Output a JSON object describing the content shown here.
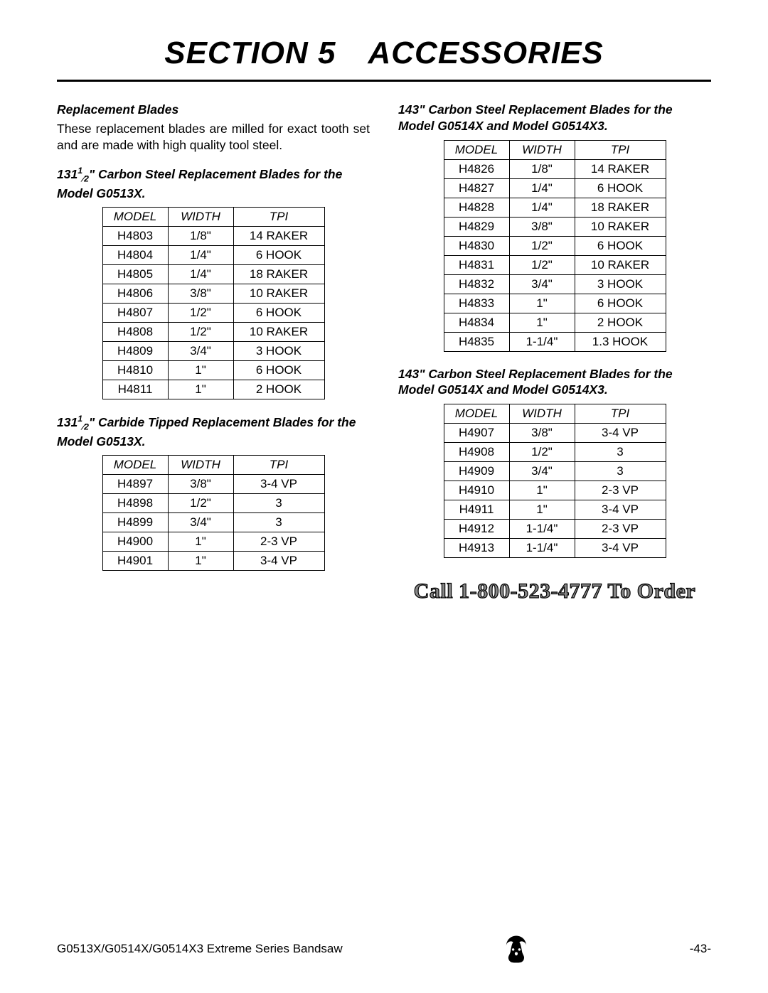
{
  "page": {
    "section_title": "SECTION 5 ACCESSORIES",
    "footer_left": "G0513X/G0514X/G0514X3 Extreme Series Bandsaw",
    "footer_right": "-43-"
  },
  "left": {
    "subhead": "Replacement Blades",
    "body": "These replacement blades are milled for exact tooth set and are made with high quality tool steel.",
    "caption1_prefix": "131",
    "caption1_sup": "1",
    "caption1_frac": "⁄2",
    "caption1_rest": "\" Carbon Steel Replacement Blades for the Model G0513X.",
    "caption2_prefix": "131",
    "caption2_sup": "1",
    "caption2_frac": "⁄2",
    "caption2_rest": "\" Carbide Tipped Replacement Blades for the Model G0513X."
  },
  "right": {
    "caption1": "143\" Carbon Steel Replacement Blades for the Model G0514X and Model G0514X3.",
    "caption2": "143\" Carbon Steel Replacement Blades for the Model G0514X and Model G0514X3.",
    "cta": "Call 1-800-523-4777 To Order"
  },
  "headers": {
    "h1": "MODEL",
    "h2": "WIDTH",
    "h3": "TPI"
  },
  "tables": {
    "t1": {
      "rows": [
        [
          "H4803",
          "1/8\"",
          "14 RAKER"
        ],
        [
          "H4804",
          "1/4\"",
          "6 HOOK"
        ],
        [
          "H4805",
          "1/4\"",
          "18 RAKER"
        ],
        [
          "H4806",
          "3/8\"",
          "10 RAKER"
        ],
        [
          "H4807",
          "1/2\"",
          "6 HOOK"
        ],
        [
          "H4808",
          "1/2\"",
          "10 RAKER"
        ],
        [
          "H4809",
          "3/4\"",
          "3 HOOK"
        ],
        [
          "H4810",
          "1\"",
          "6 HOOK"
        ],
        [
          "H4811",
          "1\"",
          "2 HOOK"
        ]
      ]
    },
    "t2": {
      "rows": [
        [
          "H4897",
          "3/8\"",
          "3-4 VP"
        ],
        [
          "H4898",
          "1/2\"",
          "3"
        ],
        [
          "H4899",
          "3/4\"",
          "3"
        ],
        [
          "H4900",
          "1\"",
          "2-3 VP"
        ],
        [
          "H4901",
          "1\"",
          "3-4 VP"
        ]
      ]
    },
    "t3": {
      "rows": [
        [
          "H4826",
          "1/8\"",
          "14 RAKER"
        ],
        [
          "H4827",
          "1/4\"",
          "6 HOOK"
        ],
        [
          "H4828",
          "1/4\"",
          "18 RAKER"
        ],
        [
          "H4829",
          "3/8\"",
          "10 RAKER"
        ],
        [
          "H4830",
          "1/2\"",
          "6 HOOK"
        ],
        [
          "H4831",
          "1/2\"",
          "10 RAKER"
        ],
        [
          "H4832",
          "3/4\"",
          "3 HOOK"
        ],
        [
          "H4833",
          "1\"",
          "6 HOOK"
        ],
        [
          "H4834",
          "1\"",
          "2 HOOK"
        ],
        [
          "H4835",
          "1-1/4\"",
          "1.3 HOOK"
        ]
      ]
    },
    "t4": {
      "rows": [
        [
          "H4907",
          "3/8\"",
          "3-4 VP"
        ],
        [
          "H4908",
          "1/2\"",
          "3"
        ],
        [
          "H4909",
          "3/4\"",
          "3"
        ],
        [
          "H4910",
          "1\"",
          "2-3 VP"
        ],
        [
          "H4911",
          "1\"",
          "3-4 VP"
        ],
        [
          "H4912",
          "1-1/4\"",
          "2-3 VP"
        ],
        [
          "H4913",
          "1-1/4\"",
          "3-4 VP"
        ]
      ]
    }
  }
}
